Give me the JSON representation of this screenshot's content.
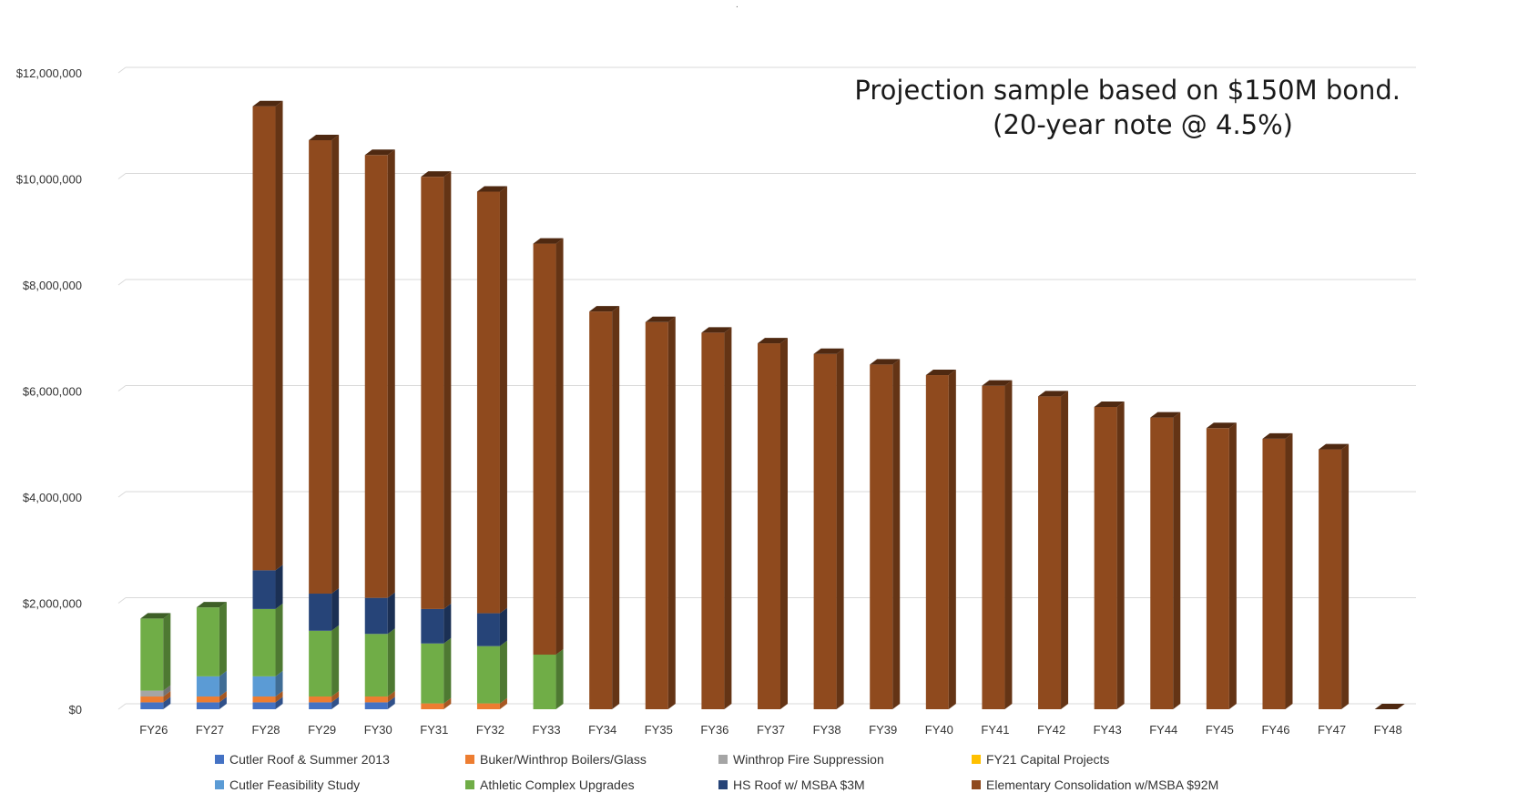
{
  "chart_data": {
    "type": "bar",
    "stacked": true,
    "three_d": true,
    "title": "",
    "xlabel": "",
    "ylabel": "",
    "ylim": [
      0,
      12000000
    ],
    "yticks": [
      0,
      2000000,
      4000000,
      6000000,
      8000000,
      10000000,
      12000000
    ],
    "ytick_labels": [
      "$0",
      "$2,000,000",
      "$4,000,000",
      "$6,000,000",
      "$8,000,000",
      "$10,000,000",
      "$12,000,000"
    ],
    "grid": true,
    "legend_position": "bottom",
    "categories": [
      "FY26",
      "FY27",
      "FY28",
      "FY29",
      "FY30",
      "FY31",
      "FY32",
      "FY33",
      "FY34",
      "FY35",
      "FY36",
      "FY37",
      "FY38",
      "FY39",
      "FY40",
      "FY41",
      "FY42",
      "FY43",
      "FY44",
      "FY45",
      "FY46",
      "FY47",
      "FY48"
    ],
    "series": [
      {
        "name": "Cutler Roof & Summer 2013",
        "color": "#4472c4",
        "values": [
          130000,
          130000,
          130000,
          130000,
          130000,
          0,
          0,
          0,
          0,
          0,
          0,
          0,
          0,
          0,
          0,
          0,
          0,
          0,
          0,
          0,
          0,
          0,
          0
        ]
      },
      {
        "name": "Buker/Winthrop Boilers/Glass",
        "color": "#ed7d31",
        "values": [
          110000,
          110000,
          110000,
          110000,
          110000,
          110000,
          110000,
          0,
          0,
          0,
          0,
          0,
          0,
          0,
          0,
          0,
          0,
          0,
          0,
          0,
          0,
          0,
          0
        ]
      },
      {
        "name": "Winthrop Fire Suppression",
        "color": "#a5a5a5",
        "values": [
          110000,
          0,
          0,
          0,
          0,
          0,
          0,
          0,
          0,
          0,
          0,
          0,
          0,
          0,
          0,
          0,
          0,
          0,
          0,
          0,
          0,
          0,
          0
        ]
      },
      {
        "name": "FY21 Capital Projects",
        "color": "#ffc000",
        "values": [
          0,
          0,
          0,
          0,
          0,
          0,
          0,
          0,
          0,
          0,
          0,
          0,
          0,
          0,
          0,
          0,
          0,
          0,
          0,
          0,
          0,
          0,
          0
        ]
      },
      {
        "name": "Cutler Feasibility Study",
        "color": "#5b9bd5",
        "values": [
          0,
          380000,
          380000,
          0,
          0,
          0,
          0,
          0,
          0,
          0,
          0,
          0,
          0,
          0,
          0,
          0,
          0,
          0,
          0,
          0,
          0,
          0,
          0
        ]
      },
      {
        "name": "Athletic Complex Upgrades",
        "color": "#70ad47",
        "values": [
          1360000,
          1300000,
          1270000,
          1240000,
          1180000,
          1130000,
          1080000,
          1030000,
          0,
          0,
          0,
          0,
          0,
          0,
          0,
          0,
          0,
          0,
          0,
          0,
          0,
          0,
          0
        ]
      },
      {
        "name": "HS Roof w/ MSBA $3M",
        "color": "#264478",
        "values": [
          0,
          0,
          730000,
          700000,
          680000,
          650000,
          620000,
          0,
          0,
          0,
          0,
          0,
          0,
          0,
          0,
          0,
          0,
          0,
          0,
          0,
          0,
          0,
          0
        ]
      },
      {
        "name": "Elementary Consolidation w/MSBA $92M",
        "color": "#8f4a1e",
        "values": [
          0,
          0,
          8750000,
          8550000,
          8350000,
          8150000,
          7950000,
          7750000,
          7500000,
          7300000,
          7100000,
          6900000,
          6700000,
          6500000,
          6300000,
          6100000,
          5900000,
          5700000,
          5500000,
          5300000,
          5100000,
          4900000,
          0
        ]
      }
    ],
    "annotation_lines": [
      "Projection sample based on $150M bond.",
      "(20-year note @ 4.5%)"
    ]
  },
  "marks": {
    "top_dot": "."
  }
}
